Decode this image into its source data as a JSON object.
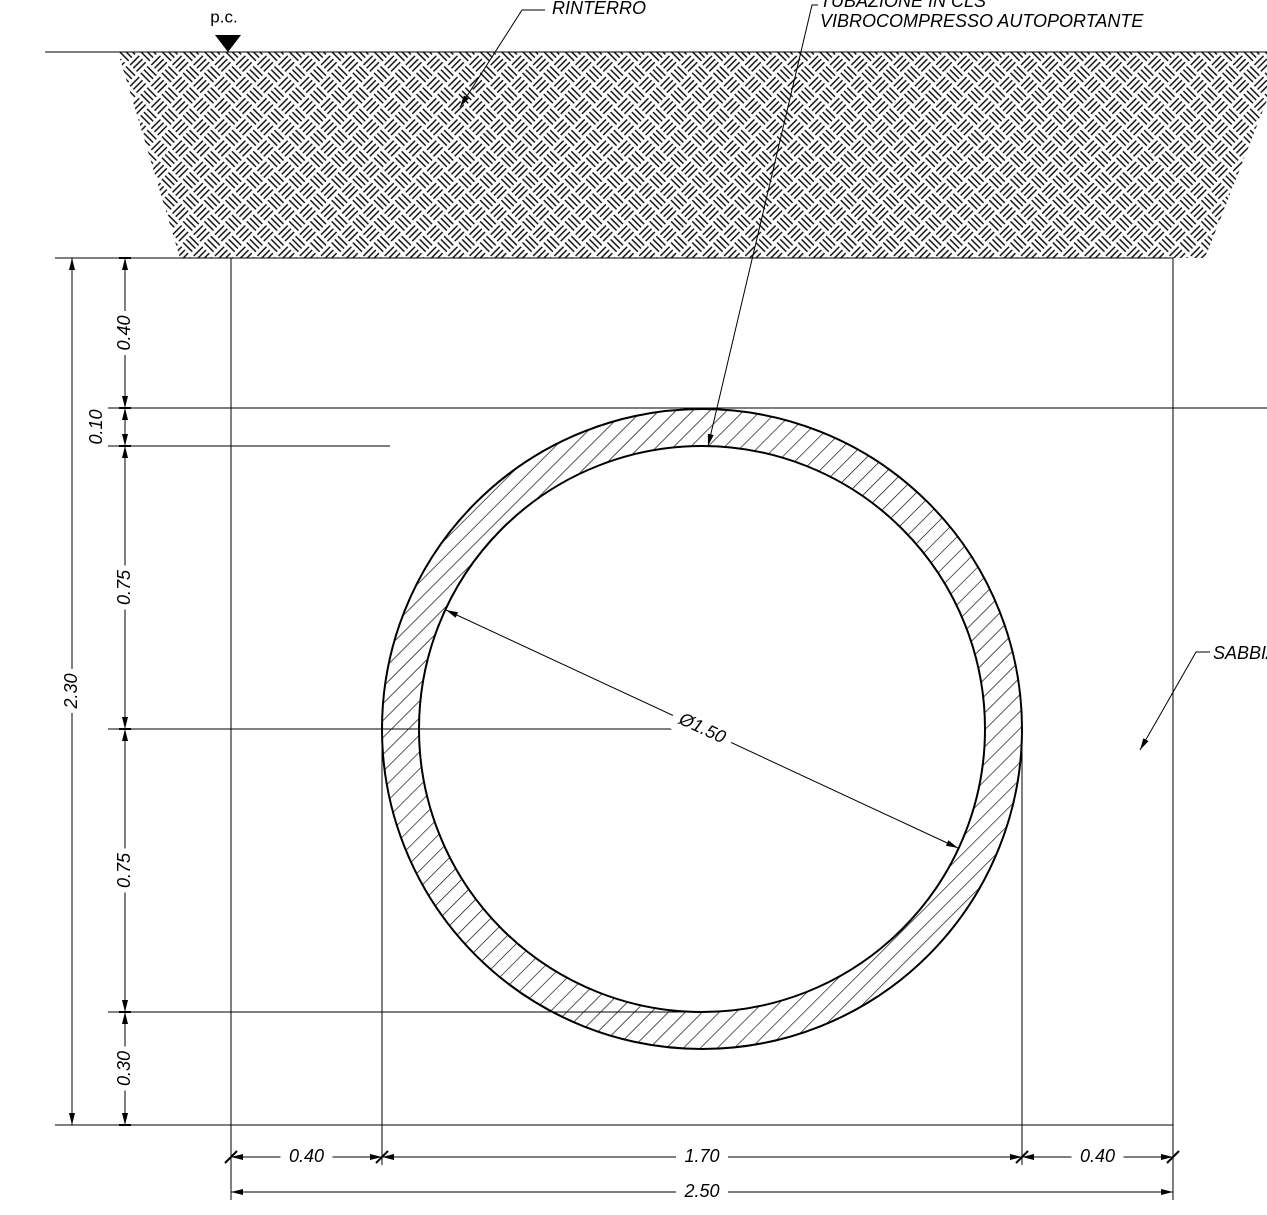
{
  "labels": {
    "ground": "p.c.",
    "backfill": "RINTERRO",
    "pipe": [
      "TUBAZIONE IN CLS",
      "VIBROCOMPRESSO AUTOPORTANTE"
    ],
    "sand": "SABBIA"
  },
  "dimensions": {
    "vertical": [
      "0.40",
      "0.10",
      "0.75",
      "0.75",
      "0.30"
    ],
    "total_height": "2.30",
    "horizontal": [
      "0.40",
      "1.70",
      "0.40"
    ],
    "total_width": "2.50",
    "diameter": "Ø1.50"
  }
}
